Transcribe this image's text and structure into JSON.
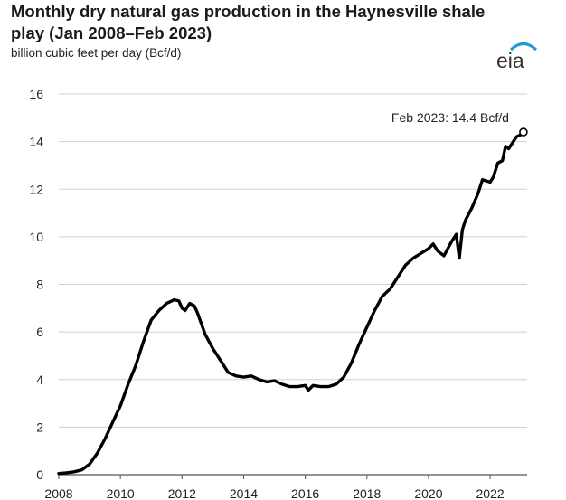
{
  "chart_data": {
    "type": "line",
    "title": "Monthly dry natural gas production in the Haynesville shale play (Jan 2008–Feb 2023)",
    "subtitle": "billion cubic feet per day (Bcf/d)",
    "logo_text": "eia",
    "xlabel": "",
    "ylabel": "",
    "xlim": [
      2008,
      2023.2
    ],
    "ylim": [
      0,
      16
    ],
    "x_ticks": [
      "2008",
      "2010",
      "2012",
      "2014",
      "2016",
      "2018",
      "2020",
      "2022"
    ],
    "y_ticks": [
      "0",
      "2",
      "4",
      "6",
      "8",
      "10",
      "12",
      "14",
      "16"
    ],
    "grid": "horizontal",
    "legend": "none",
    "line_color": "#000000",
    "annotation": {
      "text": "Feb 2023: 14.4 Bcf/d",
      "x": 2023.08,
      "y": 14.4
    },
    "series": [
      {
        "x": [
          2008.0,
          2008.25,
          2008.5,
          2008.75,
          2009.0,
          2009.25,
          2009.5,
          2009.75,
          2010.0,
          2010.25,
          2010.5,
          2010.75,
          2011.0,
          2011.25,
          2011.5,
          2011.75,
          2011.9,
          2012.0,
          2012.1,
          2012.25,
          2012.4,
          2012.5,
          2012.75,
          2013.0,
          2013.25,
          2013.5,
          2013.75,
          2014.0,
          2014.25,
          2014.5,
          2014.75,
          2015.0,
          2015.25,
          2015.5,
          2015.75,
          2016.0,
          2016.1,
          2016.25,
          2016.5,
          2016.75,
          2017.0,
          2017.25,
          2017.5,
          2017.75,
          2018.0,
          2018.25,
          2018.5,
          2018.75,
          2019.0,
          2019.25,
          2019.5,
          2019.75,
          2020.0,
          2020.15,
          2020.3,
          2020.5,
          2020.75,
          2020.9,
          2021.0,
          2021.1,
          2021.2,
          2021.4,
          2021.6,
          2021.75,
          2022.0,
          2022.1,
          2022.25,
          2022.4,
          2022.5,
          2022.6,
          2022.75,
          2022.85,
          2023.0,
          2023.08
        ],
        "values": [
          0.05,
          0.08,
          0.12,
          0.2,
          0.45,
          0.9,
          1.5,
          2.2,
          2.9,
          3.8,
          4.6,
          5.6,
          6.5,
          6.9,
          7.2,
          7.35,
          7.3,
          7.0,
          6.9,
          7.2,
          7.1,
          6.8,
          5.9,
          5.3,
          4.8,
          4.3,
          4.15,
          4.1,
          4.15,
          4.0,
          3.9,
          3.95,
          3.8,
          3.7,
          3.7,
          3.75,
          3.55,
          3.75,
          3.7,
          3.7,
          3.8,
          4.1,
          4.7,
          5.5,
          6.2,
          6.9,
          7.5,
          7.8,
          8.3,
          8.8,
          9.1,
          9.3,
          9.5,
          9.7,
          9.4,
          9.2,
          9.8,
          10.1,
          9.1,
          10.3,
          10.7,
          11.2,
          11.8,
          12.4,
          12.3,
          12.5,
          13.1,
          13.2,
          13.8,
          13.7,
          14.0,
          14.2,
          14.3,
          14.4
        ]
      }
    ]
  }
}
